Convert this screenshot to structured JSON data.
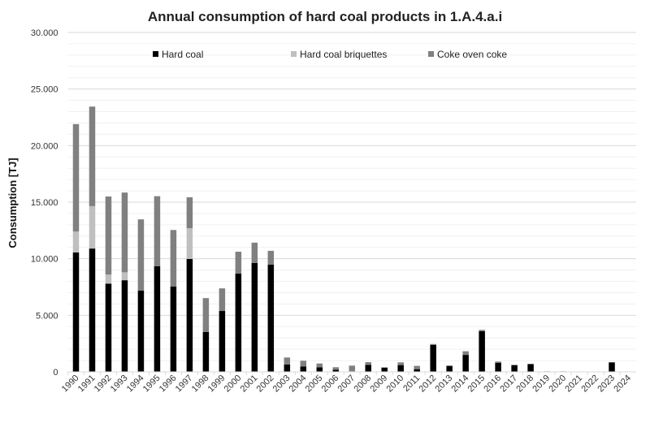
{
  "chart_data": {
    "type": "bar",
    "stacked": true,
    "title": "Annual consumption of hard coal products in 1.A.4.a.i",
    "xlabel": "",
    "ylabel": "Consumption [TJ]",
    "ylim": [
      0,
      30000
    ],
    "yticks": [
      "0",
      "5.000",
      "10.000",
      "15.000",
      "20.000",
      "25.000",
      "30.000"
    ],
    "grid": true,
    "legend_position": "top",
    "categories": [
      "1990",
      "1991",
      "1992",
      "1993",
      "1994",
      "1995",
      "1996",
      "1997",
      "1998",
      "1999",
      "2000",
      "2001",
      "2002",
      "2003",
      "2004",
      "2005",
      "2006",
      "2007",
      "2008",
      "2009",
      "2010",
      "2011",
      "2012",
      "2013",
      "2014",
      "2015",
      "2016",
      "2017",
      "2018",
      "2019",
      "2020",
      "2021",
      "2022",
      "2023",
      "2024"
    ],
    "series": [
      {
        "name": "Hard coal",
        "color": "#000000",
        "values": [
          10550,
          10900,
          7800,
          8100,
          7180,
          9330,
          7540,
          9980,
          3520,
          5380,
          8690,
          9620,
          9480,
          650,
          480,
          410,
          190,
          50,
          620,
          380,
          600,
          240,
          2390,
          500,
          1500,
          3600,
          810,
          600,
          690,
          0,
          0,
          0,
          0,
          840,
          0
        ]
      },
      {
        "name": "Hard coal briquettes",
        "color": "#bfbfbf",
        "values": [
          1850,
          3750,
          800,
          700,
          0,
          0,
          0,
          2720,
          0,
          0,
          0,
          0,
          0,
          0,
          0,
          0,
          0,
          0,
          0,
          0,
          0,
          0,
          0,
          0,
          0,
          0,
          0,
          0,
          0,
          0,
          0,
          0,
          0,
          0,
          0
        ]
      },
      {
        "name": "Coke oven coke",
        "color": "#808080",
        "values": [
          9500,
          8800,
          6900,
          7050,
          6300,
          6200,
          5000,
          2730,
          3000,
          2000,
          1930,
          1800,
          1220,
          620,
          500,
          330,
          220,
          500,
          240,
          0,
          240,
          290,
          70,
          70,
          320,
          110,
          100,
          0,
          0,
          50,
          50,
          30,
          30,
          0,
          0
        ]
      }
    ]
  }
}
